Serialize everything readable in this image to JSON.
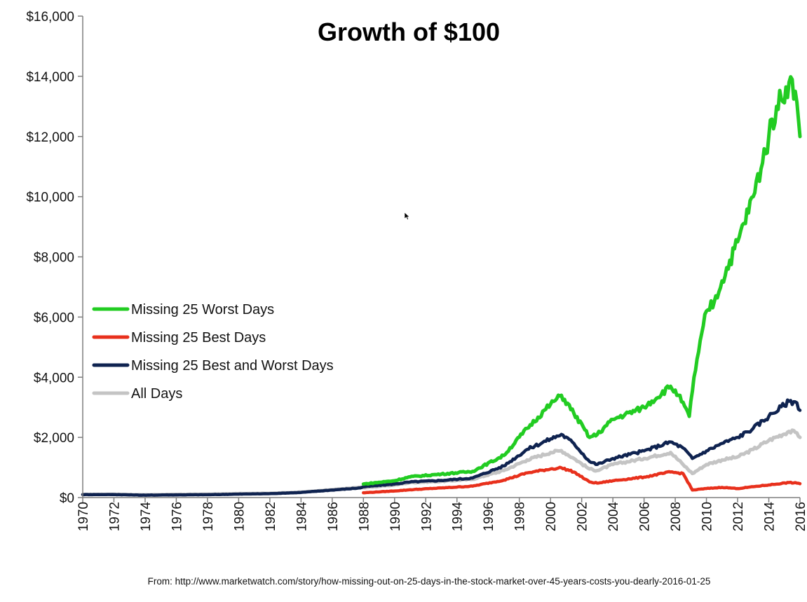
{
  "chart_data": {
    "type": "line",
    "title": "Growth of $100",
    "xlabel": "",
    "ylabel": "",
    "xlim": [
      1970,
      2016
    ],
    "ylim": [
      0,
      16000
    ],
    "y_ticks": [
      0,
      2000,
      4000,
      6000,
      8000,
      10000,
      12000,
      14000,
      16000
    ],
    "y_tick_labels": [
      "$0",
      "$2,000",
      "$4,000",
      "$6,000",
      "$8,000",
      "$10,000",
      "$12,000",
      "$14,000",
      "$16,000"
    ],
    "x_ticks": [
      1970,
      1972,
      1974,
      1976,
      1978,
      1980,
      1982,
      1984,
      1986,
      1988,
      1990,
      1992,
      1994,
      1996,
      1998,
      2000,
      2002,
      2004,
      2006,
      2008,
      2010,
      2012,
      2014,
      2016
    ],
    "x_tick_labels": [
      "1970",
      "1972",
      "1974",
      "1976",
      "1978",
      "1980",
      "1982",
      "1984",
      "1986",
      "1988",
      "1990",
      "1992",
      "1994",
      "1996",
      "1998",
      "2000",
      "2002",
      "2004",
      "2006",
      "2008",
      "2010",
      "2012",
      "2014",
      "2016"
    ],
    "grid": false,
    "legend_position": "left",
    "series": [
      {
        "name": "All Days",
        "color": "#c4c4c4",
        "points": [
          [
            1970,
            100
          ],
          [
            1972,
            110
          ],
          [
            1974,
            90
          ],
          [
            1976,
            105
          ],
          [
            1978,
            110
          ],
          [
            1980,
            130
          ],
          [
            1982,
            140
          ],
          [
            1984,
            180
          ],
          [
            1986,
            260
          ],
          [
            1987.8,
            340
          ],
          [
            1988,
            330
          ],
          [
            1990,
            420
          ],
          [
            1991,
            500
          ],
          [
            1993,
            540
          ],
          [
            1995,
            610
          ],
          [
            1997,
            900
          ],
          [
            1998.5,
            1250
          ],
          [
            2000,
            1500
          ],
          [
            2000.7,
            1560
          ],
          [
            2001.5,
            1300
          ],
          [
            2002.5,
            950
          ],
          [
            2003,
            900
          ],
          [
            2004,
            1100
          ],
          [
            2006,
            1300
          ],
          [
            2007.7,
            1500
          ],
          [
            2008.5,
            1100
          ],
          [
            2009.1,
            800
          ],
          [
            2010,
            1100
          ],
          [
            2011,
            1250
          ],
          [
            2012,
            1350
          ],
          [
            2013,
            1600
          ],
          [
            2014,
            1900
          ],
          [
            2015.3,
            2200
          ],
          [
            2015.8,
            2150
          ],
          [
            2016,
            2000
          ]
        ]
      },
      {
        "name": "Missing 25 Best and Worst Days",
        "color": "#0f2350",
        "points": [
          [
            1970,
            100
          ],
          [
            1972,
            100
          ],
          [
            1974,
            80
          ],
          [
            1976,
            90
          ],
          [
            1978,
            95
          ],
          [
            1980,
            115
          ],
          [
            1982,
            130
          ],
          [
            1984,
            170
          ],
          [
            1986,
            250
          ],
          [
            1987.8,
            320
          ],
          [
            1988,
            360
          ],
          [
            1990,
            450
          ],
          [
            1991,
            520
          ],
          [
            1993,
            570
          ],
          [
            1995,
            650
          ],
          [
            1997,
            1050
          ],
          [
            1998.5,
            1600
          ],
          [
            2000,
            1950
          ],
          [
            2000.7,
            2100
          ],
          [
            2001.5,
            1800
          ],
          [
            2002.5,
            1200
          ],
          [
            2003,
            1100
          ],
          [
            2004,
            1300
          ],
          [
            2006,
            1550
          ],
          [
            2007.7,
            1850
          ],
          [
            2008.5,
            1650
          ],
          [
            2009.1,
            1300
          ],
          [
            2010,
            1550
          ],
          [
            2011,
            1800
          ],
          [
            2012,
            2000
          ],
          [
            2013,
            2300
          ],
          [
            2014,
            2700
          ],
          [
            2015.3,
            3200
          ],
          [
            2015.8,
            3150
          ],
          [
            2016,
            2900
          ]
        ]
      },
      {
        "name": "Missing 25 Best Days",
        "color": "#e8301c",
        "points": [
          [
            1988,
            160
          ],
          [
            1990,
            220
          ],
          [
            1991,
            260
          ],
          [
            1993,
            320
          ],
          [
            1995,
            380
          ],
          [
            1997,
            580
          ],
          [
            1998.5,
            820
          ],
          [
            2000,
            950
          ],
          [
            2000.7,
            990
          ],
          [
            2001.5,
            850
          ],
          [
            2002.5,
            520
          ],
          [
            2003,
            480
          ],
          [
            2004,
            560
          ],
          [
            2006,
            680
          ],
          [
            2007.7,
            850
          ],
          [
            2008.5,
            800
          ],
          [
            2009.1,
            250
          ],
          [
            2010,
            300
          ],
          [
            2011,
            340
          ],
          [
            2012,
            300
          ],
          [
            2013,
            360
          ],
          [
            2014,
            420
          ],
          [
            2015.3,
            500
          ],
          [
            2015.8,
            480
          ],
          [
            2016,
            460
          ]
        ]
      },
      {
        "name": "Missing 25 Worst Days",
        "color": "#22cc22",
        "points": [
          [
            1988,
            450
          ],
          [
            1990,
            560
          ],
          [
            1991,
            690
          ],
          [
            1993,
            780
          ],
          [
            1995,
            870
          ],
          [
            1997,
            1400
          ],
          [
            1998.5,
            2300
          ],
          [
            2000,
            3100
          ],
          [
            2000.7,
            3400
          ],
          [
            2001.5,
            2800
          ],
          [
            2002.5,
            2000
          ],
          [
            2003,
            2100
          ],
          [
            2004,
            2600
          ],
          [
            2006,
            3000
          ],
          [
            2007.7,
            3700
          ],
          [
            2008.2,
            3400
          ],
          [
            2008.9,
            2700
          ],
          [
            2009.2,
            4000
          ],
          [
            2010,
            6200
          ],
          [
            2010.5,
            6500
          ],
          [
            2011,
            7200
          ],
          [
            2012,
            8500
          ],
          [
            2013,
            10000
          ],
          [
            2014,
            12000
          ],
          [
            2014.5,
            13000
          ],
          [
            2015.3,
            13800
          ],
          [
            2015.7,
            13500
          ],
          [
            2016,
            12000
          ]
        ]
      }
    ],
    "legend_order": [
      "Missing 25 Worst Days",
      "Missing 25 Best Days",
      "Missing 25 Best and Worst Days",
      "All Days"
    ],
    "source_note": "From: http://www.marketwatch.com/story/how-missing-out-on-25-days-in-the-stock-market-over-45-years-costs-you-dearly-2016-01-25"
  },
  "colors": {
    "axis": "#7f7f7f",
    "text": "#111111",
    "background": "#ffffff"
  }
}
